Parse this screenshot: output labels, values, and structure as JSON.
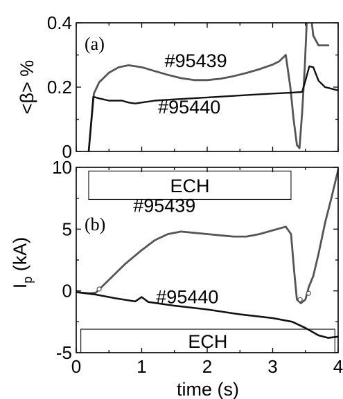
{
  "chart_data": [
    {
      "type": "line",
      "panel_label": "(a)",
      "title": "",
      "xlabel": "",
      "ylabel": "<β> %",
      "xlim": [
        0,
        4
      ],
      "ylim": [
        0,
        0.4
      ],
      "x_ticks": [
        0,
        1,
        2,
        3,
        4
      ],
      "y_ticks": [
        {
          "value": 0,
          "label": "0"
        },
        {
          "value": 0.2,
          "label": "0.2"
        },
        {
          "value": 0.4,
          "label": "0.4"
        }
      ],
      "series": [
        {
          "name": "#95439",
          "color": "#555555",
          "points": [
            [
              0.19,
              0
            ],
            [
              0.27,
              0.18
            ],
            [
              0.35,
              0.215
            ],
            [
              0.5,
              0.245
            ],
            [
              0.65,
              0.262
            ],
            [
              0.8,
              0.268
            ],
            [
              1.0,
              0.262
            ],
            [
              1.2,
              0.25
            ],
            [
              1.4,
              0.238
            ],
            [
              1.6,
              0.228
            ],
            [
              1.8,
              0.222
            ],
            [
              2.0,
              0.222
            ],
            [
              2.2,
              0.226
            ],
            [
              2.4,
              0.234
            ],
            [
              2.6,
              0.244
            ],
            [
              2.8,
              0.256
            ],
            [
              3.0,
              0.27
            ],
            [
              3.1,
              0.28
            ],
            [
              3.2,
              0.3
            ],
            [
              3.27,
              0.2
            ],
            [
              3.32,
              0.1
            ],
            [
              3.37,
              0.02
            ],
            [
              3.41,
              0.01
            ],
            [
              3.45,
              0.12
            ],
            [
              3.49,
              0.26
            ],
            [
              3.52,
              0.4
            ],
            [
              3.57,
              0.45
            ],
            [
              3.62,
              0.36
            ],
            [
              3.7,
              0.33
            ],
            [
              3.85,
              0.33
            ]
          ]
        },
        {
          "name": "#95440",
          "color": "#111111",
          "points": [
            [
              0.19,
              0
            ],
            [
              0.26,
              0.17
            ],
            [
              0.35,
              0.165
            ],
            [
              0.5,
              0.158
            ],
            [
              0.7,
              0.158
            ],
            [
              0.8,
              0.152
            ],
            [
              0.9,
              0.149
            ],
            [
              1.0,
              0.152
            ],
            [
              1.2,
              0.158
            ],
            [
              1.5,
              0.162
            ],
            [
              2.0,
              0.168
            ],
            [
              2.5,
              0.174
            ],
            [
              3.0,
              0.18
            ],
            [
              3.3,
              0.183
            ],
            [
              3.45,
              0.185
            ],
            [
              3.5,
              0.22
            ],
            [
              3.56,
              0.265
            ],
            [
              3.62,
              0.262
            ],
            [
              3.7,
              0.22
            ],
            [
              3.8,
              0.2
            ],
            [
              3.9,
              0.195
            ],
            [
              4.0,
              0.19
            ]
          ]
        }
      ],
      "annotations": [
        {
          "text": "#95439",
          "x": 1.35,
          "y": 0.262,
          "color": "#555555"
        },
        {
          "text": "#95440",
          "x": 1.25,
          "y": 0.118,
          "color": "#111111"
        }
      ]
    },
    {
      "type": "line",
      "panel_label": "(b)",
      "title": "",
      "xlabel": "time (s)",
      "ylabel_main": "I",
      "ylabel_sub": "p",
      "ylabel_unit": " (kA)",
      "xlim": [
        0,
        4
      ],
      "ylim": [
        -5,
        10
      ],
      "x_ticks": [
        {
          "value": 0,
          "label": "0"
        },
        {
          "value": 1,
          "label": "1"
        },
        {
          "value": 2,
          "label": "2"
        },
        {
          "value": 3,
          "label": "3"
        },
        {
          "value": 4,
          "label": "4"
        }
      ],
      "y_ticks": [
        {
          "value": -5,
          "label": "-5"
        },
        {
          "value": 0,
          "label": "0"
        },
        {
          "value": 5,
          "label": "5"
        },
        {
          "value": 10,
          "label": "10"
        }
      ],
      "series": [
        {
          "name": "#95439",
          "color": "#555555",
          "points": [
            [
              0.0,
              -0.1
            ],
            [
              0.2,
              -0.2
            ],
            [
              0.3,
              -0.15
            ],
            [
              0.5,
              0.9
            ],
            [
              0.75,
              2.2
            ],
            [
              1.0,
              3.3
            ],
            [
              1.2,
              4.1
            ],
            [
              1.4,
              4.6
            ],
            [
              1.6,
              4.8
            ],
            [
              1.8,
              4.7
            ],
            [
              2.0,
              4.6
            ],
            [
              2.2,
              4.5
            ],
            [
              2.4,
              4.4
            ],
            [
              2.6,
              4.4
            ],
            [
              2.8,
              4.6
            ],
            [
              3.0,
              4.9
            ],
            [
              3.2,
              5.2
            ],
            [
              3.28,
              4.6
            ],
            [
              3.33,
              1.5
            ],
            [
              3.37,
              -0.7
            ],
            [
              3.43,
              -1.0
            ],
            [
              3.5,
              -0.7
            ],
            [
              3.55,
              0.3
            ],
            [
              3.62,
              1.2
            ],
            [
              3.7,
              3.0
            ],
            [
              3.8,
              5.5
            ],
            [
              3.9,
              7.6
            ],
            [
              4.0,
              9.8
            ]
          ]
        },
        {
          "name": "#95440",
          "color": "#111111",
          "points": [
            [
              0.0,
              -0.1
            ],
            [
              0.3,
              -0.3
            ],
            [
              0.6,
              -0.6
            ],
            [
              0.9,
              -0.85
            ],
            [
              1.0,
              -0.5
            ],
            [
              1.1,
              -0.9
            ],
            [
              1.5,
              -1.2
            ],
            [
              2.0,
              -1.5
            ],
            [
              2.5,
              -1.9
            ],
            [
              3.0,
              -2.2
            ],
            [
              3.3,
              -2.5
            ],
            [
              3.5,
              -3.0
            ],
            [
              3.7,
              -3.6
            ],
            [
              3.85,
              -3.8
            ],
            [
              4.0,
              -3.7
            ]
          ]
        }
      ],
      "markers": [
        {
          "series": "#95439",
          "x": 0.35,
          "y": 0.15
        },
        {
          "series": "#95439",
          "x": 3.42,
          "y": -0.7
        },
        {
          "series": "#95439",
          "x": 3.55,
          "y": -0.2
        }
      ],
      "shaded_boxes": [
        {
          "label": "ECH",
          "x_start": 0.19,
          "x_end": 3.28,
          "y_bottom": 7.4,
          "y_top": 9.7
        },
        {
          "label": "ECH",
          "x_start": 0.07,
          "x_end": 3.95,
          "y_bottom": -5.0,
          "y_top": -3.1
        }
      ],
      "annotations": [
        {
          "text": "#95439",
          "x": 0.87,
          "y": 6.4,
          "color": "#555555"
        },
        {
          "text": "#95440",
          "x": 1.22,
          "y": -1.0,
          "color": "#111111"
        }
      ]
    }
  ]
}
